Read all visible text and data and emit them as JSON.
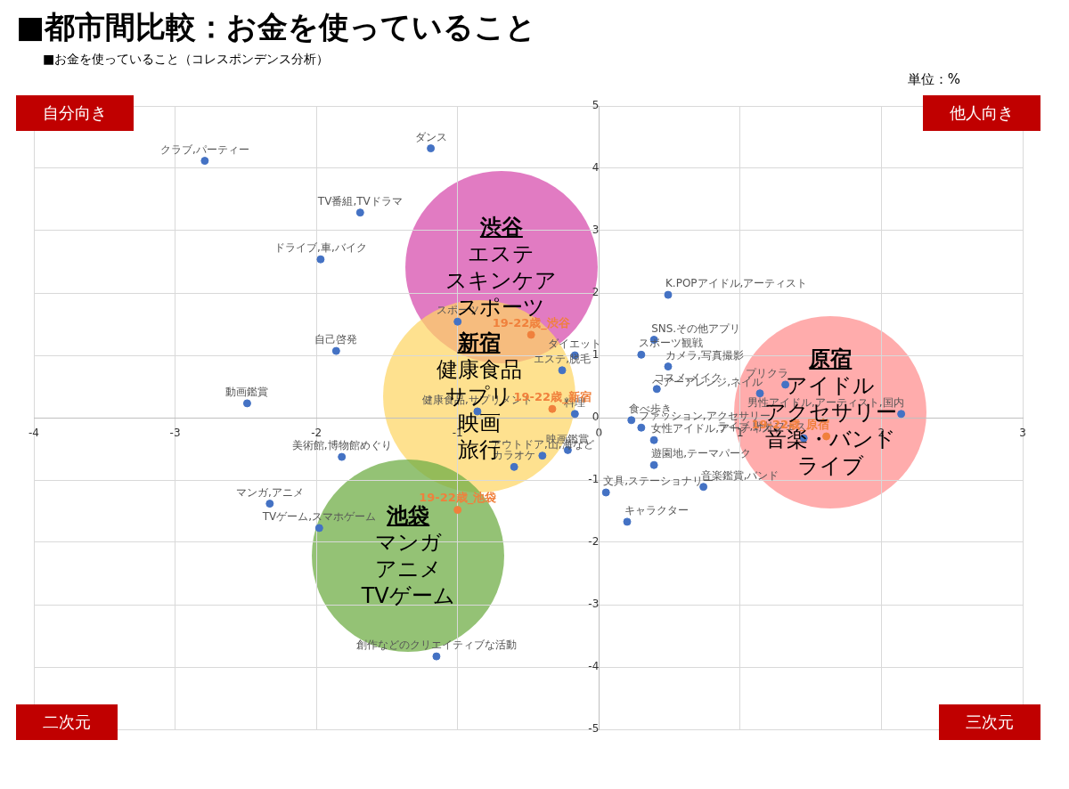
{
  "chart_data": {
    "type": "scatter",
    "title": "■都市間比較：お金を使っていること",
    "subtitle": "■お金を使っていること（コレスポンデンス分析）",
    "xlim": [
      -4,
      3
    ],
    "ylim": [
      -5,
      5
    ],
    "xticks": [
      -4,
      -3,
      -2,
      -1,
      0,
      1,
      2,
      3
    ],
    "yticks": [
      -5,
      -4,
      -3,
      -2,
      -1,
      0,
      1,
      2,
      3,
      4,
      5
    ],
    "grid": true,
    "marker": "circle",
    "series": [
      {
        "color": "#4472c4",
        "x": [
          -2.79,
          -1.19,
          -1.69,
          -1.97,
          -1.86,
          -2.49,
          -1.82,
          -2.33,
          -1.98,
          -1.15,
          0.49,
          0.39,
          0.3,
          0.49,
          0.41,
          0.23,
          0.3,
          0.39,
          0.39,
          0.74,
          0.05,
          0.2,
          -0.17,
          -0.26,
          -1.0,
          -0.86,
          -0.17,
          -0.22,
          -0.4,
          -0.6,
          1.14,
          1.32,
          2.14,
          1.45
        ],
        "values": [
          4.12,
          4.32,
          3.29,
          2.54,
          1.07,
          0.23,
          -0.63,
          -1.38,
          -1.77,
          -3.83,
          1.97,
          1.25,
          1.01,
          0.82,
          0.46,
          -0.04,
          -0.16,
          -0.36,
          -0.76,
          -1.11,
          -1.2,
          -1.67,
          1.0,
          0.76,
          1.54,
          0.1,
          0.06,
          -0.52,
          -0.61,
          -0.79,
          0.39,
          0.53,
          0.06,
          -0.33
        ],
        "value_labels": [
          "クラブ,パーティー",
          "ダンス",
          "TV番組,TVドラマ",
          "ドライブ,車,バイク",
          "自己啓発",
          "動画鑑賞",
          "美術館,博物館めぐり",
          "マンガ,アニメ",
          "TVゲーム,スマホゲーム",
          "創作などのクリエイティブな活動",
          "K.POPアイドル,アーティスト",
          "SNS.その他アプリ",
          "スポーツ観戦",
          "カメラ,写真撮影",
          "コスメ,メイク",
          "食べ歩き",
          "ファッション,アクセサリー",
          "女性アイドル,アーティスト",
          "遊園地,テーマパーク",
          "音楽鑑賞,バンド",
          "文具,ステーショナリー",
          "キャラクター",
          "ダイエット",
          "エステ,脱毛",
          "スポーツ",
          "健康食品,サプリメント",
          "料理",
          "映画鑑賞",
          "アウトドア,山,海など",
          "カラオケ",
          "ヘアーアレンジ,ネイル",
          "プリクラ",
          "男性アイドル,アーティスト,国内",
          "ライブ,野外フェス"
        ]
      },
      {
        "color": "#f0803c",
        "x": [
          -0.48,
          -0.33,
          -1.0,
          1.61
        ],
        "values": [
          1.33,
          0.14,
          -1.48,
          -0.3
        ],
        "value_labels": [
          "19-22歳_渋谷",
          "19-22歳_新宿",
          "19-22歳_池袋",
          "19-22歳_原宿"
        ]
      }
    ],
    "annotations": [
      "自分向き",
      "他人向き",
      "二次元",
      "三次元",
      "単位：%",
      "渋谷",
      "エステ",
      "スキンケア",
      "スポーツ",
      "新宿",
      "健康食品",
      "サプリ",
      "映画",
      "旅行",
      "池袋",
      "マンガ",
      "アニメ",
      "TVゲーム",
      "原宿",
      "アイドル",
      "アクセサリー",
      "音楽・バンド",
      "ライブ"
    ]
  }
}
